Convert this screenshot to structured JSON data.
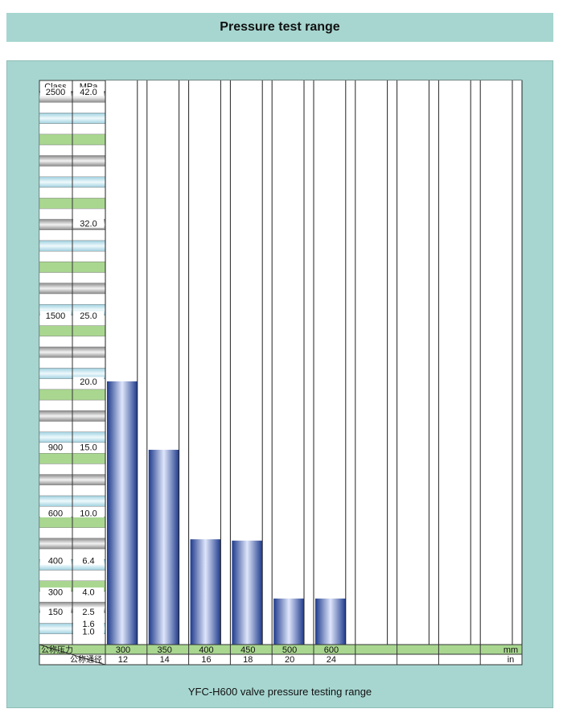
{
  "header": {
    "title": "Pressure test range"
  },
  "caption": "YFC-H600 valve pressure testing range",
  "colors": {
    "banner": "#a7d6d0",
    "bar_dark": "#1e3a8c",
    "bar_light": "#dfe6fb",
    "row_green": "#a9d790",
    "row_blue": "#cfeaf1",
    "row_gray": "#c2c2c2"
  },
  "chart_data": {
    "type": "bar",
    "title": "Pressure test range",
    "y_axis": {
      "class_header": "Class",
      "mpa_header": "MPa",
      "ylim": [
        0,
        42
      ],
      "class_labels": [
        {
          "value": 42.0,
          "label": "2500"
        },
        {
          "value": 25.0,
          "label": "1500"
        },
        {
          "value": 15.0,
          "label": "900"
        },
        {
          "value": 10.0,
          "label": "600"
        },
        {
          "value": 6.4,
          "label": "400"
        },
        {
          "value": 4.0,
          "label": "300"
        },
        {
          "value": 2.5,
          "label": "150"
        }
      ],
      "mpa_labels": [
        {
          "value": 42.0,
          "label": "42.0"
        },
        {
          "value": 32.0,
          "label": "32.0"
        },
        {
          "value": 25.0,
          "label": "25.0"
        },
        {
          "value": 20.0,
          "label": "20.0"
        },
        {
          "value": 15.0,
          "label": "15.0"
        },
        {
          "value": 10.0,
          "label": "10.0"
        },
        {
          "value": 6.4,
          "label": "6.4"
        },
        {
          "value": 4.0,
          "label": "4.0"
        },
        {
          "value": 2.5,
          "label": "2.5"
        },
        {
          "value": 1.6,
          "label": "1.6"
        },
        {
          "value": 1.0,
          "label": "1.0"
        }
      ]
    },
    "x_axis": {
      "row1_label": "公称压力",
      "row2_label": "公称通径",
      "unit_mm": "mm",
      "unit_in": "in",
      "categories_mm": [
        "300",
        "350",
        "400",
        "450",
        "500",
        "600",
        "",
        "",
        "",
        ""
      ],
      "categories_in": [
        "12",
        "14",
        "16",
        "18",
        "20",
        "24",
        "",
        "",
        "",
        ""
      ]
    },
    "values": [
      20.0,
      14.8,
      8.0,
      7.9,
      3.5,
      3.5
    ]
  }
}
